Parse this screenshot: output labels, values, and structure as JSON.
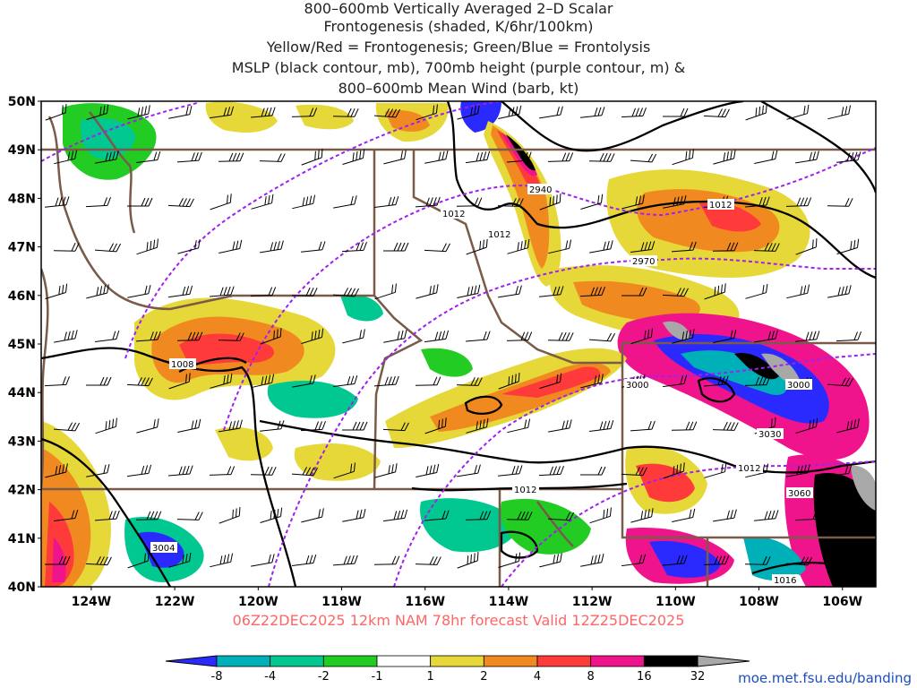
{
  "title": {
    "lines": [
      "800–600mb Vertically Averaged 2–D Scalar",
      "Frontogenesis (shaded, K/6hr/100km)",
      "Yellow/Red = Frontogenesis;  Green/Blue = Frontolysis",
      "MSLP (black contour, mb), 700mb height (purple contour, m) &",
      "800–600mb Mean Wind (barb, kt)"
    ]
  },
  "footer": "06Z22DEC2025 12km NAM 78hr forecast Valid 12Z25DEC2025",
  "credit": "moe.met.fsu.edu/banding",
  "axes": {
    "lat_labels": [
      "50N",
      "49N",
      "48N",
      "47N",
      "46N",
      "45N",
      "44N",
      "43N",
      "42N",
      "41N",
      "40N"
    ],
    "lon_labels": [
      "124W",
      "122W",
      "120W",
      "118W",
      "116W",
      "114W",
      "112W",
      "110W",
      "108W",
      "106W"
    ],
    "lat_range": [
      40,
      50
    ],
    "lon_range": [
      -125.2,
      -105.2
    ]
  },
  "contours": {
    "mslp_labels": [
      "1012",
      "1012",
      "1012",
      "1008",
      "1012",
      "1016",
      "1012"
    ],
    "height_labels": [
      "2940",
      "2970",
      "3000",
      "3000",
      "3030",
      "3060",
      "3004"
    ]
  },
  "colorbar": {
    "ticks": [
      "-8",
      "-4",
      "-2",
      "-1",
      "1",
      "2",
      "4",
      "8",
      "16",
      "32"
    ],
    "colors": [
      "#2a2aff",
      "#00b0b8",
      "#00c890",
      "#22cc22",
      "#ffffff",
      "#e6d838",
      "#f08a20",
      "#ff3a3a",
      "#f0148c",
      "#000000",
      "#a8a8a8"
    ]
  },
  "colors": {
    "mslp": "#000000",
    "height": "#a020f0",
    "borders": "#7a5a48",
    "footer": "#ff6666",
    "credit": "#1a4cc0"
  }
}
